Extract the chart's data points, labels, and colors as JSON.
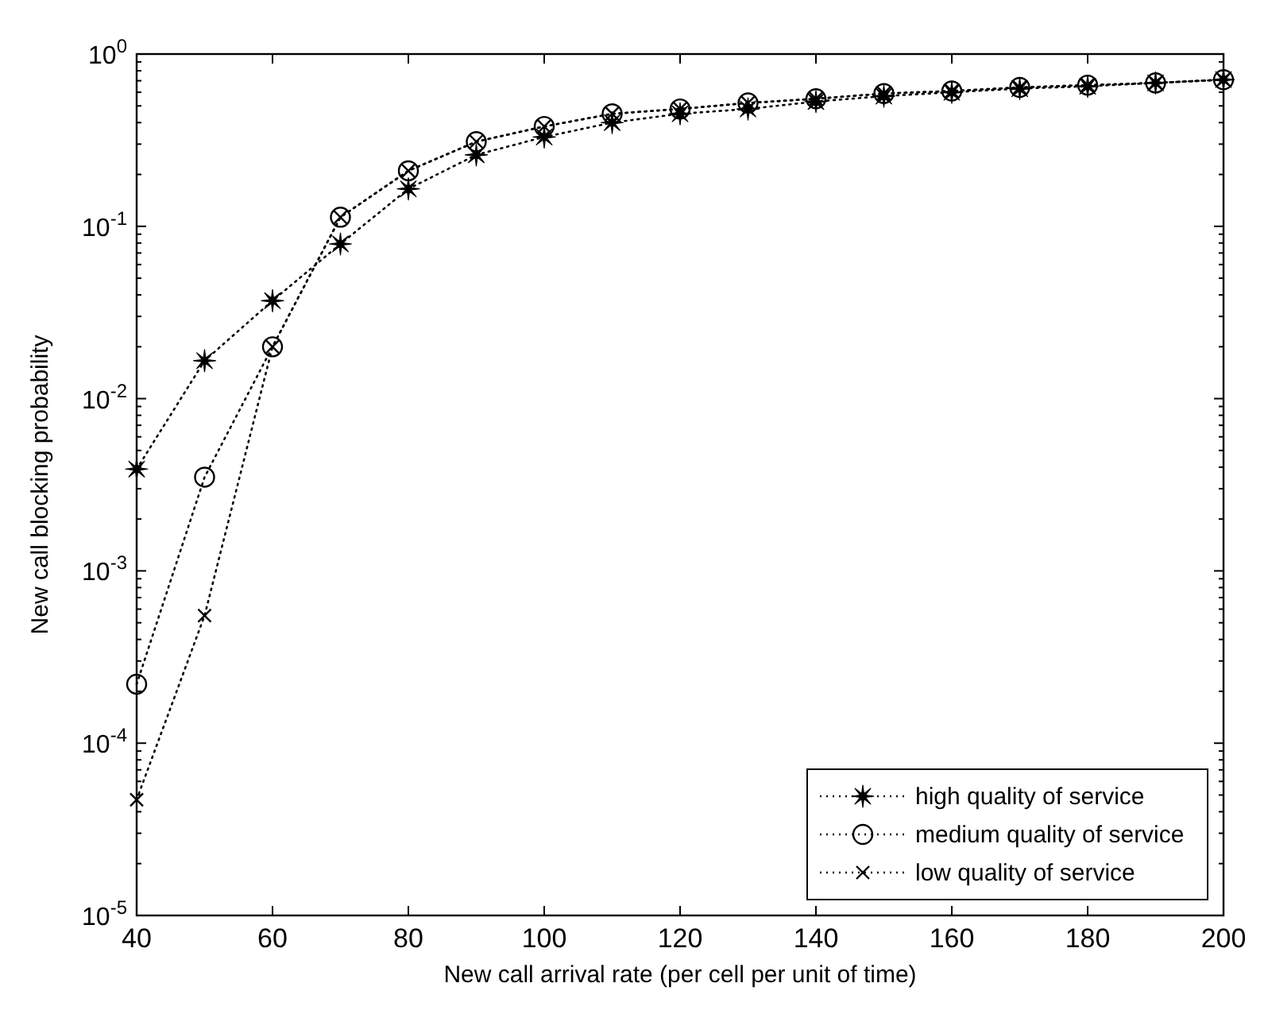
{
  "chart_data": {
    "type": "line",
    "xlabel": "New call arrival rate (per cell per unit of time)",
    "ylabel": "New call blocking probability",
    "log": "y",
    "x": [
      40,
      50,
      60,
      70,
      80,
      90,
      100,
      110,
      120,
      130,
      140,
      150,
      160,
      170,
      180,
      190,
      200
    ],
    "series": [
      {
        "name": "high quality of service",
        "color": "#000000",
        "marker": "star",
        "values": [
          0.0039,
          0.0166,
          0.037,
          0.079,
          0.165,
          0.26,
          0.33,
          0.4,
          0.45,
          0.48,
          0.53,
          0.57,
          0.6,
          0.63,
          0.65,
          0.68,
          0.71
        ]
      },
      {
        "name": "medium quality of service",
        "color": "#000000",
        "marker": "circle",
        "values": [
          0.00022,
          0.0035,
          0.02,
          0.113,
          0.21,
          0.31,
          0.38,
          0.45,
          0.48,
          0.52,
          0.55,
          0.59,
          0.61,
          0.64,
          0.66,
          0.68,
          0.71
        ]
      },
      {
        "name": "low quality of service",
        "color": "#000000",
        "marker": "cross",
        "values": [
          4.7e-05,
          0.00055,
          0.02,
          0.113,
          0.21,
          0.31,
          0.38,
          0.45,
          0.48,
          0.52,
          0.55,
          0.59,
          0.61,
          0.64,
          0.66,
          0.68,
          0.71
        ]
      }
    ],
    "line_style": "dotted",
    "legend": "bottom right",
    "grid": false,
    "xlim": [
      40,
      200
    ],
    "xticks": [
      40,
      60,
      80,
      100,
      120,
      140,
      160,
      180,
      200
    ],
    "ylim": [
      1e-05,
      1
    ],
    "yticks": [
      {
        "value": 1e-05,
        "label": "10$^{-5}$"
      },
      {
        "value": 0.0001,
        "label": "10$^{-4}$"
      },
      {
        "value": 0.001,
        "label": "10$^{-3}$"
      },
      {
        "value": 0.01,
        "label": "10$^{-2}$"
      },
      {
        "value": 0.1,
        "label": "10$^{-1}$"
      },
      {
        "value": 1,
        "label": "10$^{0}$"
      }
    ]
  }
}
